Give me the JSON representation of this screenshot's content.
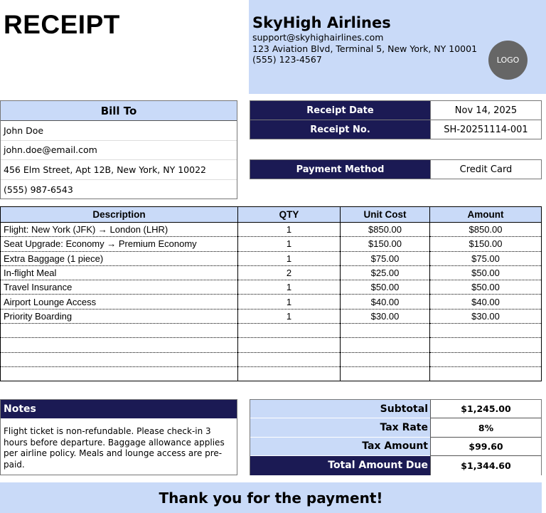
{
  "header": {
    "title": "RECEIPT"
  },
  "company": {
    "name": "SkyHigh Airlines",
    "email": "support@skyhighairlines.com",
    "address": "123 Aviation Blvd, Terminal 5, New York, NY 10001",
    "phone": "(555) 123-4567",
    "logo": "LOGO"
  },
  "bill_to": {
    "label": "Bill To",
    "name": "John Doe",
    "email": "john.doe@email.com",
    "address": "456 Elm Street, Apt 12B, New York, NY 10022",
    "phone": "(555) 987-6543"
  },
  "receipt": {
    "date_label": "Receipt Date",
    "date": "Nov 14, 2025",
    "no_label": "Receipt No.",
    "no": "SH-20251114-001",
    "payment_label": "Payment Method",
    "payment": "Credit Card"
  },
  "items": {
    "headers": [
      "Description",
      "QTY",
      "Unit Cost",
      "Amount"
    ],
    "rows": [
      [
        "Flight: New York (JFK) → London (LHR)",
        "1",
        "$850.00",
        "$850.00"
      ],
      [
        "Seat Upgrade: Economy → Premium Economy",
        "1",
        "$150.00",
        "$150.00"
      ],
      [
        "Extra Baggage (1 piece)",
        "1",
        "$75.00",
        "$75.00"
      ],
      [
        "In-flight Meal",
        "2",
        "$25.00",
        "$50.00"
      ],
      [
        "Travel Insurance",
        "1",
        "$50.00",
        "$50.00"
      ],
      [
        "Airport Lounge Access",
        "1",
        "$40.00",
        "$40.00"
      ],
      [
        "Priority Boarding",
        "1",
        "$30.00",
        "$30.00"
      ],
      [
        "",
        "",
        "",
        ""
      ],
      [
        "",
        "",
        "",
        ""
      ],
      [
        "",
        "",
        "",
        ""
      ],
      [
        "",
        "",
        "",
        ""
      ]
    ]
  },
  "notes": {
    "label": "Notes",
    "text": "Flight ticket is non-refundable. Please check-in 3 hours before departure. Baggage allowance applies per airline policy. Meals and lounge access are pre-paid."
  },
  "totals": [
    {
      "label": "Subtotal",
      "value": "$1,245.00"
    },
    {
      "label": "Tax Rate",
      "value": "8%"
    },
    {
      "label": "Tax Amount",
      "value": "$99.60"
    },
    {
      "label": "Total Amount Due",
      "value": "$1,344.60"
    }
  ],
  "footer": {
    "thanks": "Thank you for the payment!"
  },
  "colors": {
    "light_blue": "#c9daf8",
    "navy": "#1b1a54"
  }
}
